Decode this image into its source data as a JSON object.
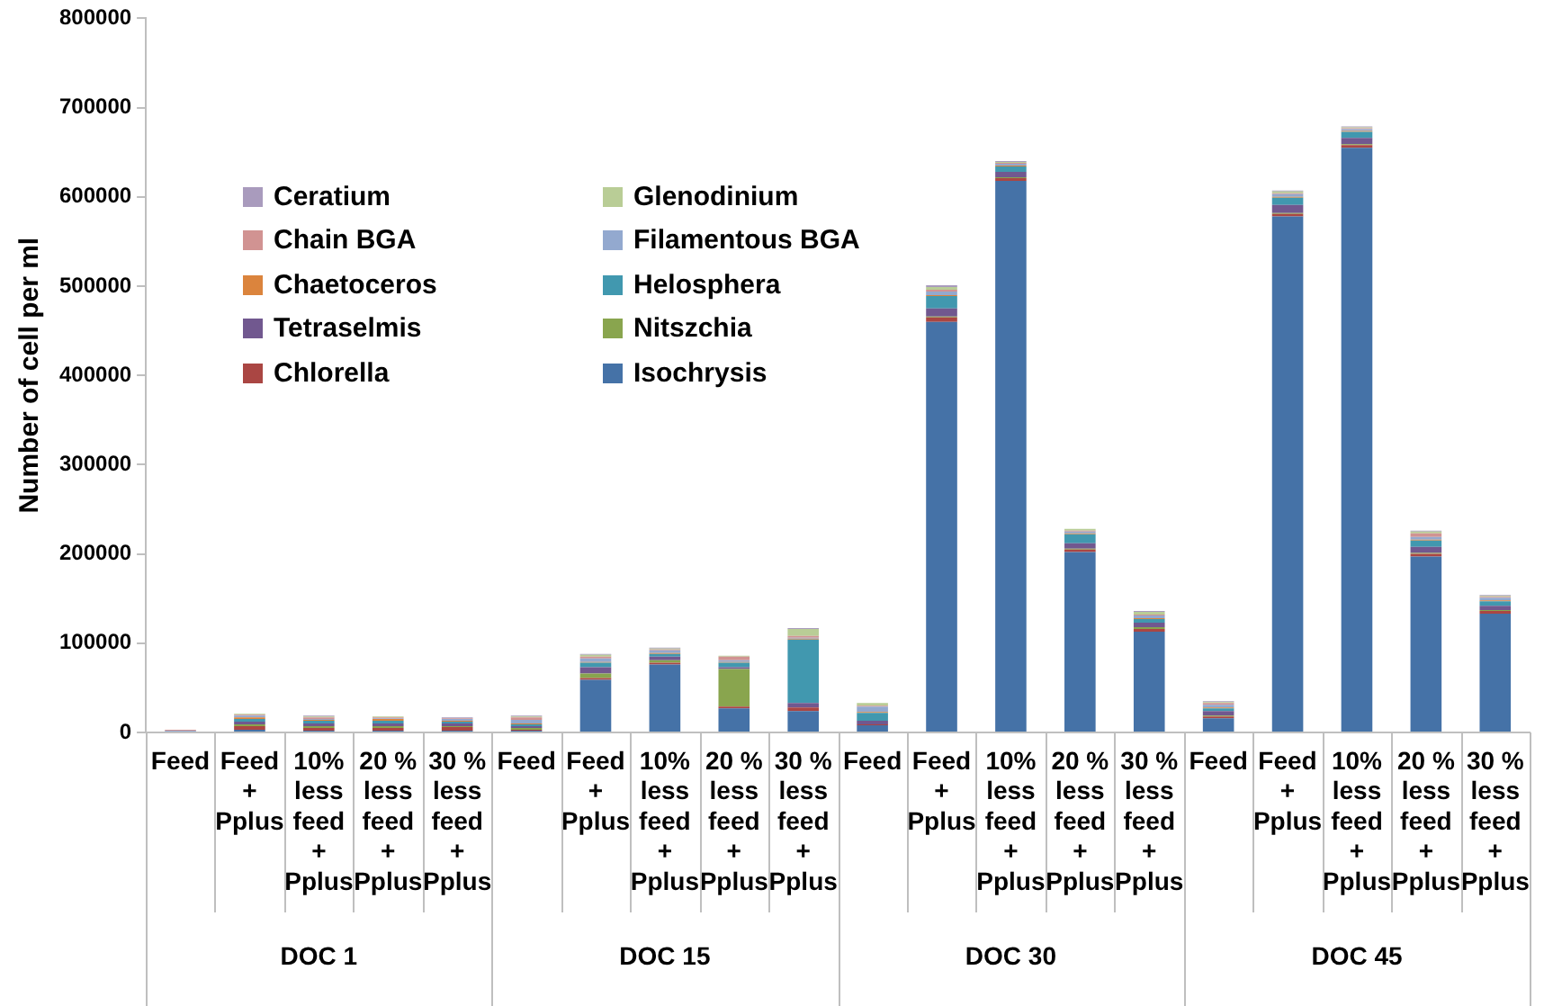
{
  "chart_data": {
    "type": "bar",
    "stacked": true,
    "ylabel": "Number of cell per ml",
    "categories": [
      "Feed",
      "Feed + Pplus",
      "10% less feed + Pplus",
      "20 % less feed + Pplus",
      "30 % less feed + Pplus",
      "Feed",
      "Feed + Pplus",
      "10% less feed + Pplus",
      "20 % less feed + Pplus",
      "30 % less feed + Pplus",
      "Feed",
      "Feed + Pplus",
      "10% less feed + Pplus",
      "20 % less feed + Pplus",
      "30 % less feed + Pplus",
      "Feed",
      "Feed + Pplus",
      "10% less feed + Pplus",
      "20 % less feed + Pplus",
      "30 % less feed + Pplus"
    ],
    "annotations": [
      "DOC 1",
      "DOC 15",
      "DOC 30",
      "DOC 45"
    ],
    "ylim": [
      0,
      800000
    ],
    "yticks": [
      0,
      100000,
      200000,
      300000,
      400000,
      500000,
      600000,
      700000,
      800000
    ],
    "grid": false,
    "legend": "top left",
    "series": [
      {
        "name": "Isochrysis",
        "color": "#4572a7",
        "values": [
          0,
          3000,
          2000,
          2000,
          2000,
          2000,
          59000,
          76000,
          27000,
          24000,
          8000,
          460000,
          618000,
          202000,
          113000,
          16000,
          578000,
          655000,
          197000,
          133000
        ]
      },
      {
        "name": "Chlorella",
        "color": "#aa4643",
        "values": [
          1000,
          4000,
          3000,
          3000,
          4000,
          1000,
          2000,
          2000,
          2000,
          4000,
          1000,
          5000,
          3000,
          3000,
          3000,
          2000,
          3000,
          3000,
          3000,
          3000
        ]
      },
      {
        "name": "Nitszchia",
        "color": "#89a54e",
        "values": [
          0,
          2000,
          2000,
          2000,
          1000,
          2000,
          5000,
          3000,
          42000,
          0,
          0,
          1000,
          1000,
          1000,
          2000,
          1000,
          1000,
          1000,
          1000,
          1000
        ]
      },
      {
        "name": "Tetraselmis",
        "color": "#71588f",
        "values": [
          0,
          3000,
          3000,
          3000,
          3000,
          2000,
          7000,
          4000,
          2000,
          5000,
          4000,
          9000,
          6000,
          6000,
          5000,
          5000,
          9000,
          7000,
          7000,
          5000
        ]
      },
      {
        "name": "Helosphera",
        "color": "#4198af",
        "values": [
          0,
          3000,
          3000,
          3000,
          2000,
          2000,
          5000,
          3000,
          5000,
          71000,
          9000,
          14000,
          6000,
          10000,
          4000,
          3000,
          8000,
          7000,
          7000,
          5000
        ]
      },
      {
        "name": "Chaetoceros",
        "color": "#db843d",
        "values": [
          0,
          2000,
          1000,
          2000,
          1000,
          1000,
          1000,
          1000,
          1000,
          1000,
          1000,
          1000,
          1000,
          1000,
          1000,
          1000,
          1000,
          1000,
          1000,
          1000
        ]
      },
      {
        "name": "Filamentous BGA",
        "color": "#93a9cf",
        "values": [
          1000,
          2000,
          1000,
          1000,
          2000,
          4000,
          4000,
          3000,
          2000,
          1000,
          6000,
          4000,
          2000,
          2000,
          3000,
          3000,
          3000,
          2000,
          3000,
          3000
        ]
      },
      {
        "name": "Chain BGA",
        "color": "#d19392",
        "values": [
          1000,
          1000,
          2000,
          1000,
          1000,
          3000,
          2000,
          1000,
          4000,
          2000,
          1000,
          2000,
          1000,
          1000,
          1000,
          2000,
          1000,
          1000,
          4000,
          1000
        ]
      },
      {
        "name": "Glenodinium",
        "color": "#b9cd96",
        "values": [
          0,
          1000,
          1000,
          1000,
          0,
          1000,
          2000,
          1000,
          1000,
          8000,
          3000,
          3000,
          1000,
          2000,
          3000,
          1000,
          2000,
          1000,
          2000,
          1000
        ]
      },
      {
        "name": "Ceratium",
        "color": "#a99bbd",
        "values": [
          0,
          0,
          1000,
          0,
          1000,
          1000,
          1000,
          1000,
          0,
          1000,
          0,
          2000,
          1000,
          0,
          1000,
          1000,
          1000,
          1000,
          1000,
          1000
        ]
      }
    ]
  }
}
